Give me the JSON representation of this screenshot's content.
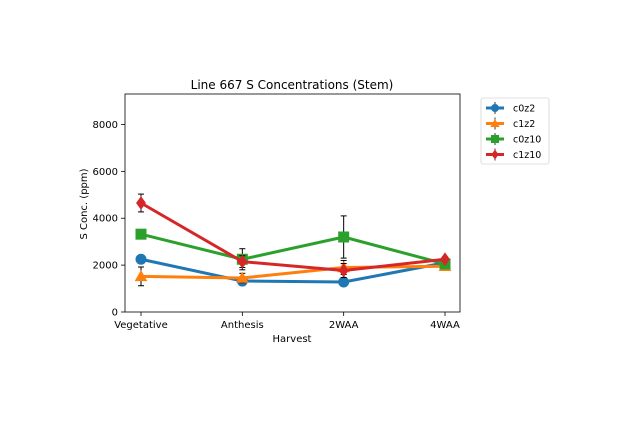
{
  "chart_data": {
    "type": "line",
    "title": "Line 667 S Concentrations (Stem)",
    "xlabel": "Harvest",
    "ylabel": "S Conc. (ppm)",
    "categories": [
      "Vegetative",
      "Anthesis",
      "2WAA",
      "4WAA"
    ],
    "ylim": [
      0,
      9300
    ],
    "yticks": [
      0,
      2000,
      4000,
      6000,
      8000
    ],
    "grid": false,
    "legend_position": "right, outside plot area",
    "series": [
      {
        "name": "c0z2",
        "color": "#1f77b4",
        "marker": "circle",
        "values": [
          2250,
          1320,
          1280,
          2100
        ],
        "errors": [
          150,
          150,
          100,
          250
        ]
      },
      {
        "name": "c1z2",
        "color": "#ff7f0e",
        "marker": "triangle",
        "values": [
          1520,
          1450,
          1900,
          1950
        ],
        "errors": [
          400,
          200,
          300,
          150
        ]
      },
      {
        "name": "c0z10",
        "color": "#2ca02c",
        "marker": "square",
        "values": [
          3320,
          2250,
          3200,
          2050
        ],
        "errors": [
          100,
          450,
          900,
          150
        ]
      },
      {
        "name": "c1z10",
        "color": "#d62728",
        "marker": "diamond",
        "values": [
          4650,
          2150,
          1770,
          2250
        ],
        "errors": [
          380,
          250,
          300,
          100
        ]
      }
    ]
  }
}
